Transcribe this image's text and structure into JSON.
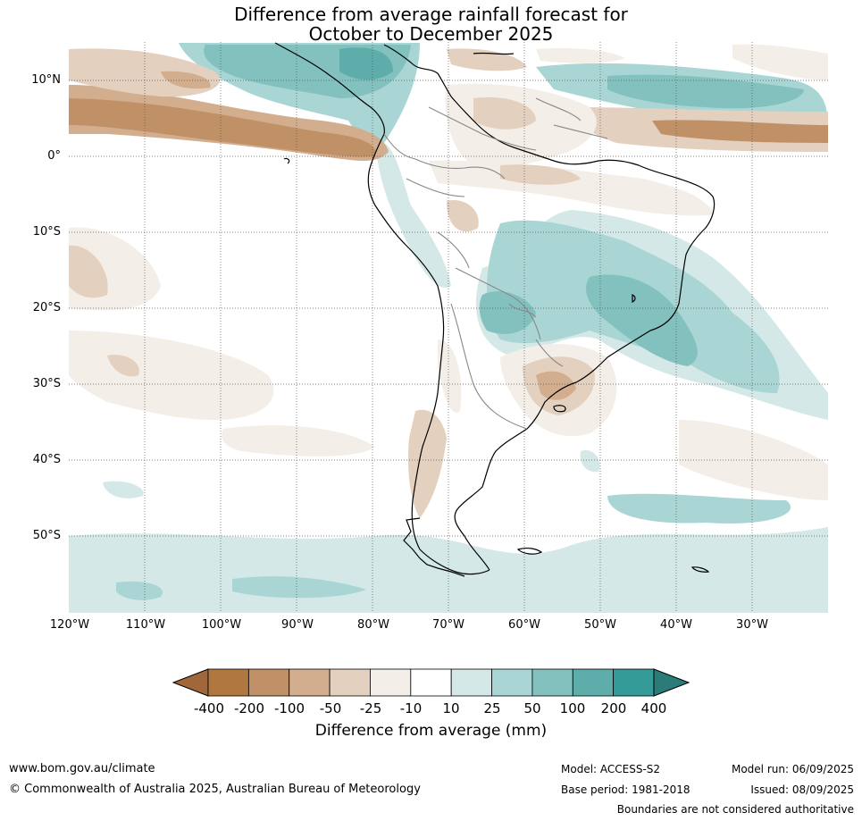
{
  "title_line1": "Difference from average rainfall forecast for",
  "title_line2": "October to December 2025",
  "lat_labels": [
    "10°N",
    "0°",
    "10°S",
    "20°S",
    "30°S",
    "40°S",
    "50°S"
  ],
  "lon_labels": [
    "120°W",
    "110°W",
    "100°W",
    "90°W",
    "80°W",
    "70°W",
    "60°W",
    "50°W",
    "40°W",
    "30°W"
  ],
  "colorbar": {
    "title": "Difference from average (mm)",
    "labels": [
      "-400",
      "-200",
      "-100",
      "-50",
      "-25",
      "-10",
      "10",
      "25",
      "50",
      "100",
      "200",
      "400"
    ],
    "colors": [
      "#a0673a",
      "#b07740",
      "#c09167",
      "#d2ae8e",
      "#e4d0be",
      "#f3eee8",
      "#ffffff",
      "#d4e9e7",
      "#a9d6d4",
      "#83c1bf",
      "#5eadab",
      "#349b98",
      "#2b7b79"
    ]
  },
  "footer": {
    "website": "www.bom.gov.au/climate",
    "copyright": "© Commonwealth of Australia 2025, Australian Bureau of Meteorology",
    "model": "Model: ACCESS-S2",
    "base_period": "Base period: 1981-2018",
    "model_run": "Model run: 06/09/2025",
    "issued": "Issued: 08/09/2025",
    "disclaimer": "Boundaries are not considered authoritative"
  }
}
